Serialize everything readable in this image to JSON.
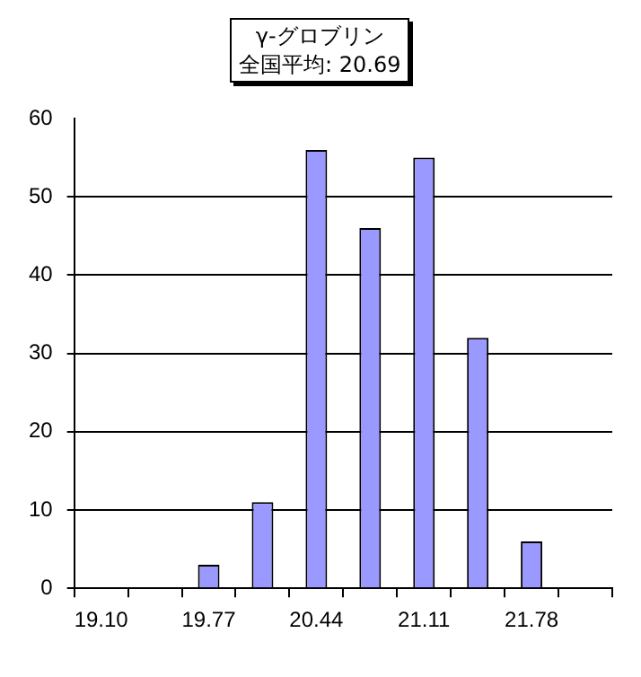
{
  "chart_data": {
    "type": "bar",
    "title": "γ-グロブリン",
    "subtitle": "全国平均: 20.69",
    "categories": [
      "19.10",
      null,
      "19.77",
      null,
      "20.44",
      null,
      "21.11",
      null,
      "21.78",
      null
    ],
    "values": [
      0,
      0,
      3,
      11,
      56,
      46,
      55,
      32,
      6,
      0
    ],
    "color": "#9999ff",
    "ylim": [
      0,
      60
    ],
    "yticks": [
      0,
      10,
      20,
      30,
      40,
      50,
      60
    ],
    "grid": "y",
    "legend": false
  }
}
